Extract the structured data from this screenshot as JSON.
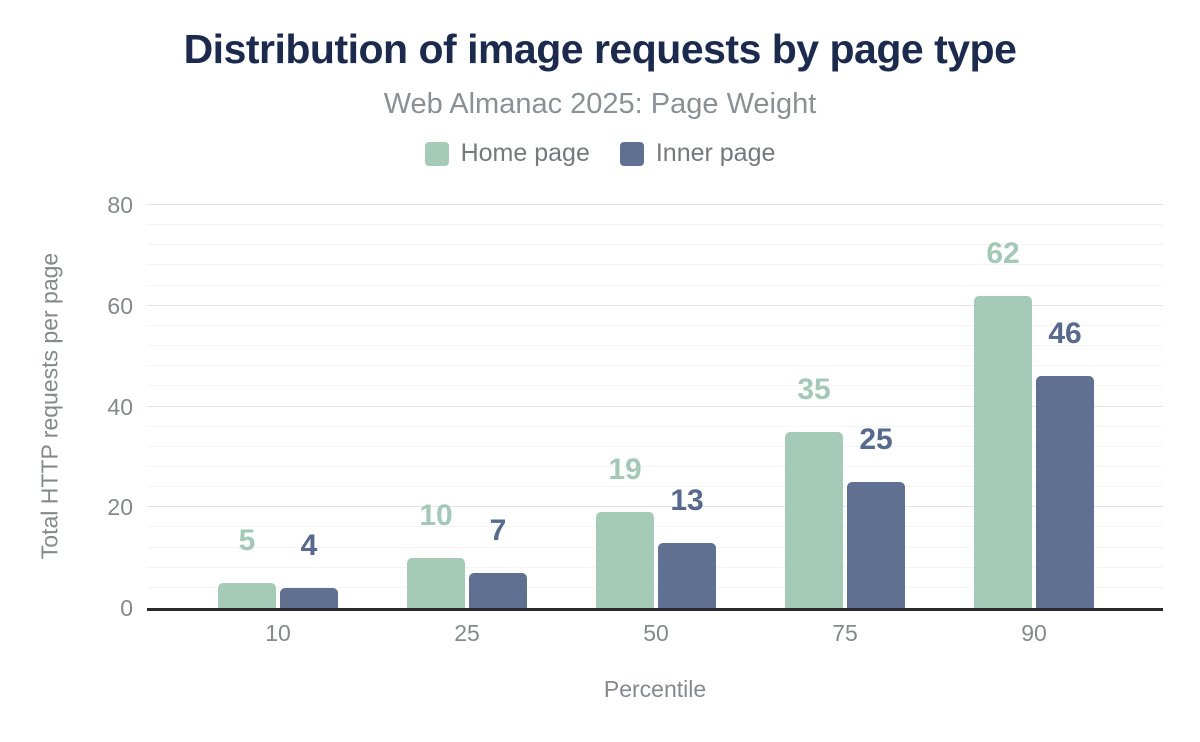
{
  "chart_data": {
    "type": "bar",
    "title": "Distribution of image requests by page type",
    "subtitle": "Web Almanac 2025: Page Weight",
    "xlabel": "Percentile",
    "ylabel": "Total HTTP requests per page",
    "categories": [
      "10",
      "25",
      "50",
      "75",
      "90"
    ],
    "series": [
      {
        "name": "Home page",
        "color": "#a6cab8",
        "label_color": "#a3c9b6",
        "values": [
          5,
          10,
          19,
          35,
          62
        ]
      },
      {
        "name": "Inner page",
        "color": "#5f7090",
        "label_color": "#57698c",
        "values": [
          4,
          7,
          13,
          25,
          46
        ]
      }
    ],
    "ylim": [
      0,
      80
    ],
    "yticks": [
      0,
      20,
      40,
      60,
      80
    ],
    "minor_grid_step": 4,
    "grid": "on",
    "legend_position": "top"
  },
  "colors": {
    "title": "#1c2b4d",
    "subtitle": "#8a9096",
    "axis_text": "#85888c",
    "legend_text": "#75787c",
    "axis_line": "#29292d",
    "grid_major": "#e4e4e4",
    "grid_minor": "#f4f4f4",
    "background": "#ffffff"
  }
}
